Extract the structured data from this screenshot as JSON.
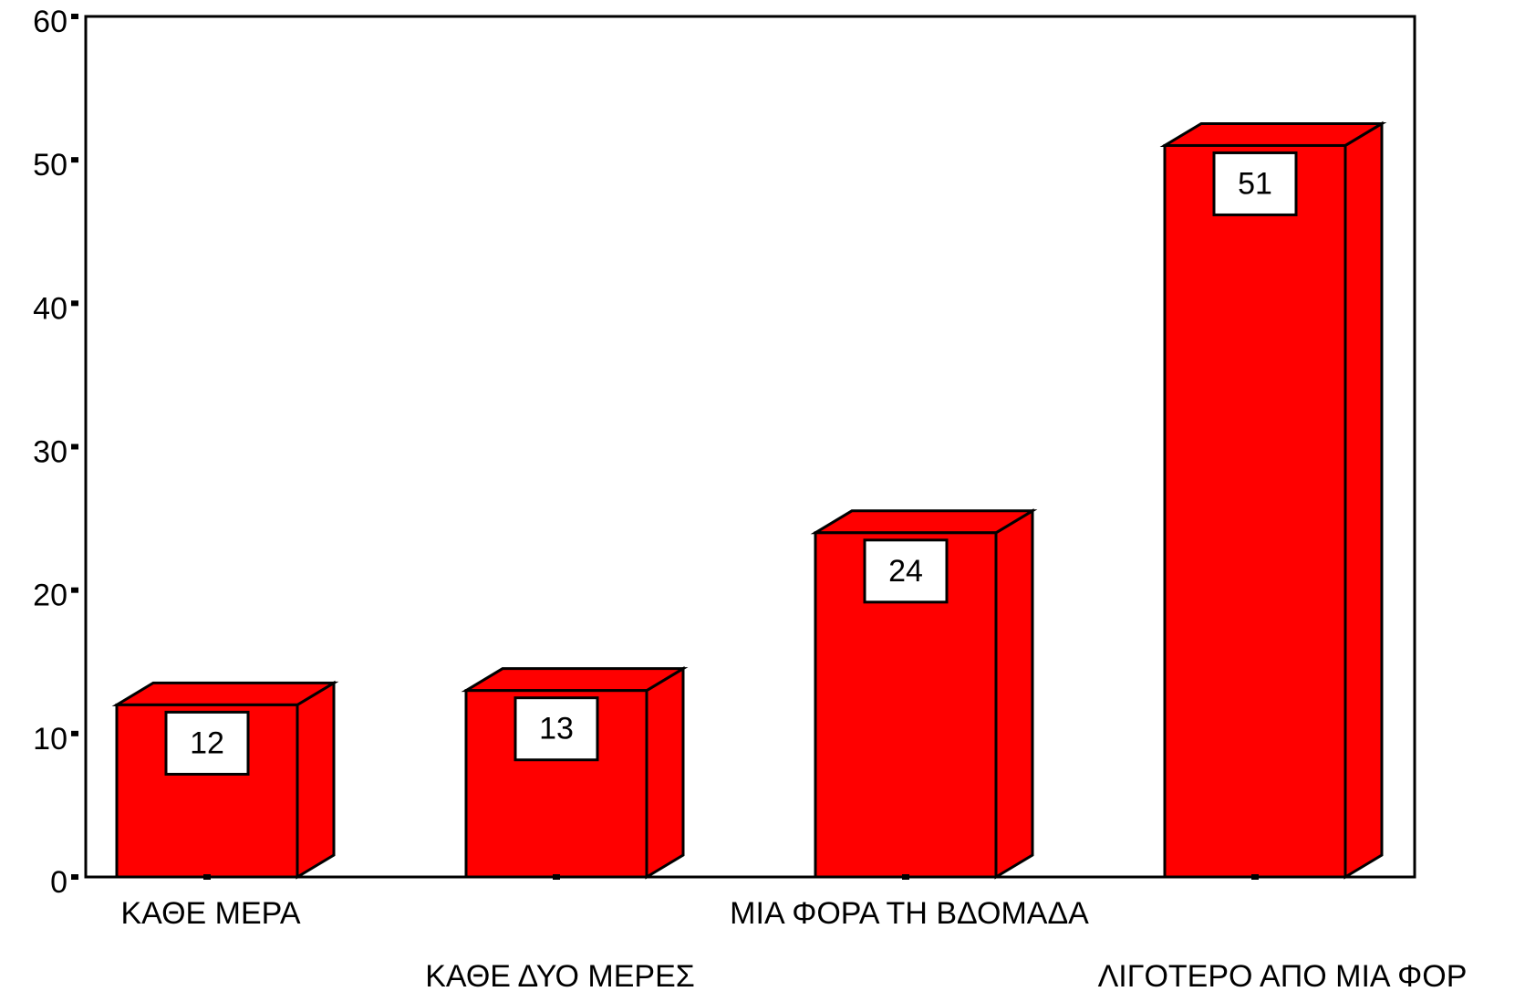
{
  "chart_data": {
    "type": "bar3d",
    "categories": [
      "ΚΑΘΕ ΜΕΡΑ",
      "ΚΑΘΕ ΔΥΟ ΜΕΡΕΣ",
      "ΜΙΑ ΦΟΡΑ ΤΗ ΒΔΟΜΑΔΑ",
      "ΛΙΓΟΤΕΡΟ ΑΠΟ ΜΙΑ ΦΟΡ"
    ],
    "values": [
      12,
      13,
      24,
      51
    ],
    "color": "#ff0000",
    "ylim": [
      0,
      60
    ],
    "yticks": [
      0,
      10,
      20,
      30,
      40,
      50,
      60
    ]
  }
}
